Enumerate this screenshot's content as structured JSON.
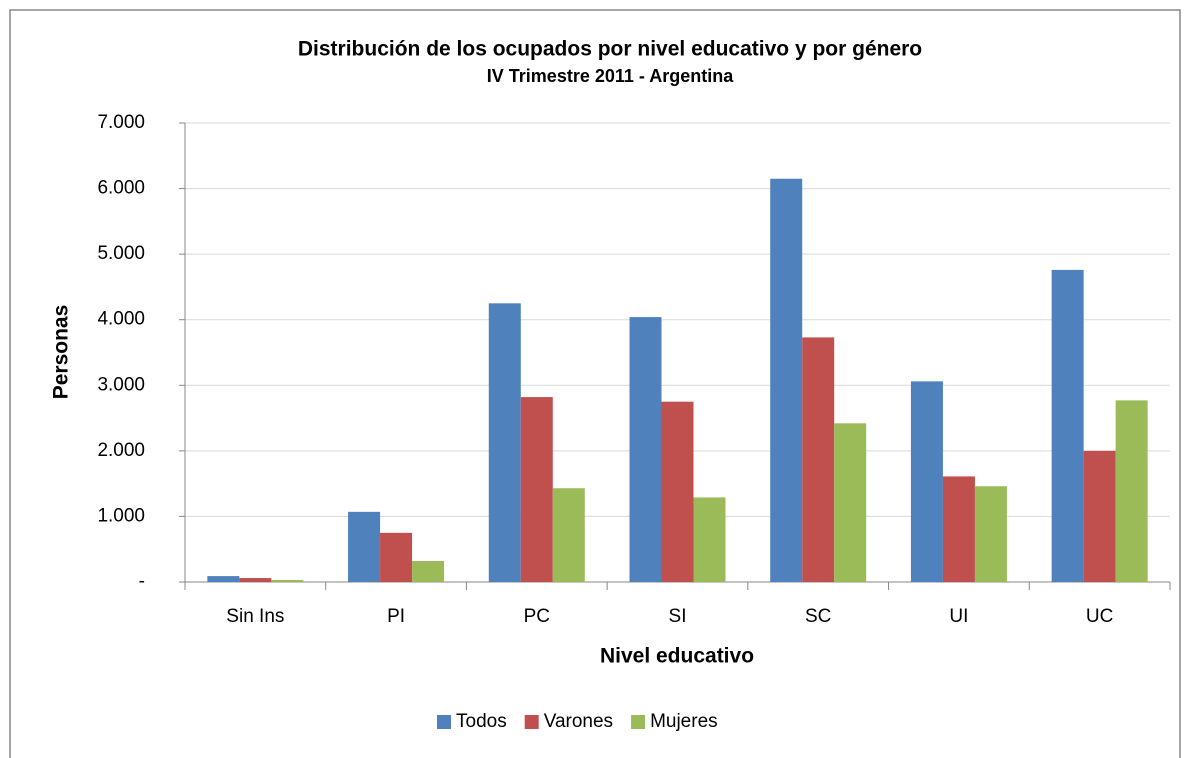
{
  "chart_data": {
    "type": "bar",
    "title": "Distribución de los ocupados por nivel educativo y por género",
    "subtitle": "IV Trimestre 2011 - Argentina",
    "x_label": "Nivel educativo",
    "y_label": "Personas",
    "categories": [
      "Sin Ins",
      "PI",
      "PC",
      "SI",
      "SC",
      "UI",
      "UC"
    ],
    "series": [
      {
        "name": "Todos",
        "color": "#4f81bd",
        "values": [
          90,
          1070,
          4250,
          4040,
          6150,
          3060,
          4760
        ]
      },
      {
        "name": "Varones",
        "color": "#c0504d",
        "values": [
          60,
          750,
          2820,
          2750,
          3730,
          1610,
          2000
        ]
      },
      {
        "name": "Mujeres",
        "color": "#9bbb59",
        "values": [
          30,
          320,
          1430,
          1290,
          2420,
          1460,
          2770
        ]
      }
    ],
    "ylim": [
      0,
      7000
    ],
    "yticks": [
      {
        "value": 0,
        "label": "-"
      },
      {
        "value": 1000,
        "label": "1.000"
      },
      {
        "value": 2000,
        "label": "2.000"
      },
      {
        "value": 3000,
        "label": "3.000"
      },
      {
        "value": 4000,
        "label": "4.000"
      },
      {
        "value": 5000,
        "label": "5.000"
      },
      {
        "value": 6000,
        "label": "6.000"
      },
      {
        "value": 7000,
        "label": "7.000"
      }
    ],
    "grid": true,
    "legend": "bottom"
  }
}
